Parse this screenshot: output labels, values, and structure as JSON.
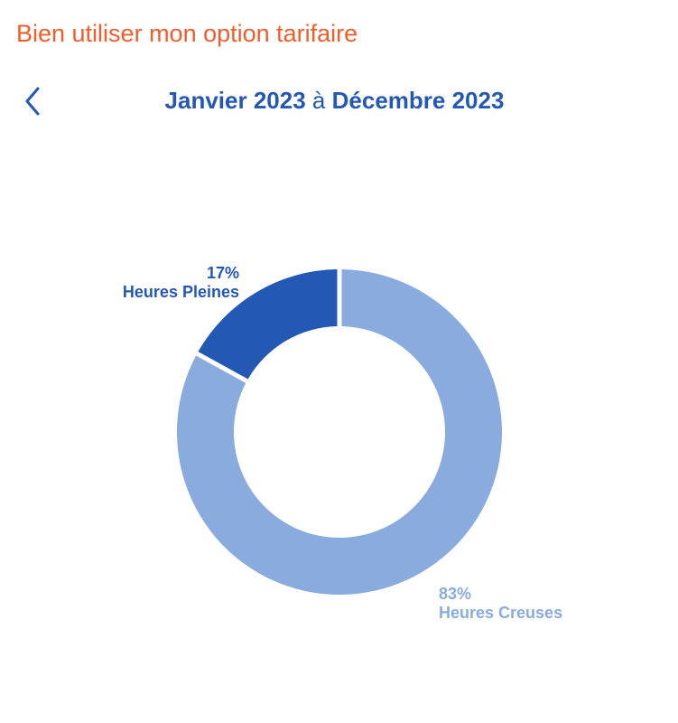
{
  "header": {
    "title": "Bien utiliser mon option tarifaire",
    "back_icon": "chevron-left-icon"
  },
  "period": {
    "start": "Janvier 2023",
    "conjunction": "à",
    "end": "Décembre 2023"
  },
  "colors": {
    "title": "#f25c2a",
    "primary": "#2458b5",
    "heures_pleines": "#2458b5",
    "heures_creuses": "#8aabdd"
  },
  "chart_data": {
    "type": "pie",
    "series": [
      {
        "name": "Heures Pleines",
        "value": 17,
        "percent_label": "17%",
        "color": "#2458b5"
      },
      {
        "name": "Heures Creuses",
        "value": 83,
        "percent_label": "83%",
        "color": "#8aabdd"
      }
    ]
  }
}
